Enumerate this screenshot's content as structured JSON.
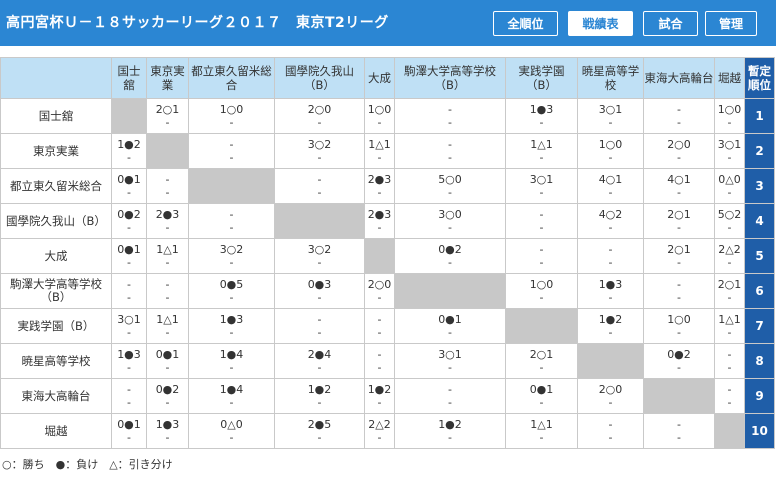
{
  "header": {
    "title": "高円宮杯Ｕ－１８サッカーリーグ２０１７　東京T2リーグ",
    "nav": [
      {
        "label": "全順位",
        "active": false
      },
      {
        "label": "戦績表",
        "active": true
      },
      {
        "label": "試合",
        "active": false
      },
      {
        "label": "管理",
        "active": false
      }
    ]
  },
  "table": {
    "rank_header": "暫定順位",
    "columns": [
      "国士舘",
      "東京実業",
      "都立東久留米総合",
      "國學院久我山（B）",
      "大成",
      "駒澤大学高等学校（B）",
      "実践学園（B）",
      "暁星高等学校",
      "東海大高輪台",
      "堀越"
    ],
    "rows": [
      {
        "team": "国士舘",
        "rank": "1",
        "cells": [
          null,
          [
            "2○1",
            "-"
          ],
          [
            "1○0",
            "-"
          ],
          [
            "2○0",
            "-"
          ],
          [
            "1○0",
            "-"
          ],
          [
            "-",
            "-"
          ],
          [
            "1●3",
            "-"
          ],
          [
            "3○1",
            "-"
          ],
          [
            "-",
            "-"
          ],
          [
            "1○0",
            "-"
          ]
        ]
      },
      {
        "team": "東京実業",
        "rank": "2",
        "cells": [
          [
            "1●2",
            "-"
          ],
          null,
          [
            "-",
            "-"
          ],
          [
            "3○2",
            "-"
          ],
          [
            "1△1",
            "-"
          ],
          [
            "-",
            "-"
          ],
          [
            "1△1",
            "-"
          ],
          [
            "1○0",
            "-"
          ],
          [
            "2○0",
            "-"
          ],
          [
            "3○1",
            "-"
          ]
        ]
      },
      {
        "team": "都立東久留米総合",
        "rank": "3",
        "cells": [
          [
            "0●1",
            "-"
          ],
          [
            "-",
            "-"
          ],
          null,
          [
            "-",
            "-"
          ],
          [
            "2●3",
            "-"
          ],
          [
            "5○0",
            "-"
          ],
          [
            "3○1",
            "-"
          ],
          [
            "4○1",
            "-"
          ],
          [
            "4○1",
            "-"
          ],
          [
            "0△0",
            "-"
          ]
        ]
      },
      {
        "team": "國學院久我山（B）",
        "rank": "4",
        "cells": [
          [
            "0●2",
            "-"
          ],
          [
            "2●3",
            "-"
          ],
          [
            "-",
            "-"
          ],
          null,
          [
            "2●3",
            "-"
          ],
          [
            "3○0",
            "-"
          ],
          [
            "-",
            "-"
          ],
          [
            "4○2",
            "-"
          ],
          [
            "2○1",
            "-"
          ],
          [
            "5○2",
            "-"
          ]
        ]
      },
      {
        "team": "大成",
        "rank": "5",
        "cells": [
          [
            "0●1",
            "-"
          ],
          [
            "1△1",
            "-"
          ],
          [
            "3○2",
            "-"
          ],
          [
            "3○2",
            "-"
          ],
          null,
          [
            "0●2",
            "-"
          ],
          [
            "-",
            "-"
          ],
          [
            "-",
            "-"
          ],
          [
            "2○1",
            "-"
          ],
          [
            "2△2",
            "-"
          ]
        ]
      },
      {
        "team": "駒澤大学高等学校（B）",
        "rank": "6",
        "cells": [
          [
            "-",
            "-"
          ],
          [
            "-",
            "-"
          ],
          [
            "0●5",
            "-"
          ],
          [
            "0●3",
            "-"
          ],
          [
            "2○0",
            "-"
          ],
          null,
          [
            "1○0",
            "-"
          ],
          [
            "1●3",
            "-"
          ],
          [
            "-",
            "-"
          ],
          [
            "2○1",
            "-"
          ]
        ]
      },
      {
        "team": "実践学園（B）",
        "rank": "7",
        "cells": [
          [
            "3○1",
            "-"
          ],
          [
            "1△1",
            "-"
          ],
          [
            "1●3",
            "-"
          ],
          [
            "-",
            "-"
          ],
          [
            "-",
            "-"
          ],
          [
            "0●1",
            "-"
          ],
          null,
          [
            "1●2",
            "-"
          ],
          [
            "1○0",
            "-"
          ],
          [
            "1△1",
            "-"
          ]
        ]
      },
      {
        "team": "暁星高等学校",
        "rank": "8",
        "cells": [
          [
            "1●3",
            "-"
          ],
          [
            "0●1",
            "-"
          ],
          [
            "1●4",
            "-"
          ],
          [
            "2●4",
            "-"
          ],
          [
            "-",
            "-"
          ],
          [
            "3○1",
            "-"
          ],
          [
            "2○1",
            "-"
          ],
          null,
          [
            "0●2",
            "-"
          ],
          [
            "-",
            "-"
          ]
        ]
      },
      {
        "team": "東海大高輪台",
        "rank": "9",
        "cells": [
          [
            "-",
            "-"
          ],
          [
            "0●2",
            "-"
          ],
          [
            "1●4",
            "-"
          ],
          [
            "1●2",
            "-"
          ],
          [
            "1●2",
            "-"
          ],
          [
            "-",
            "-"
          ],
          [
            "0●1",
            "-"
          ],
          [
            "2○0",
            "-"
          ],
          null,
          [
            "-",
            "-"
          ]
        ]
      },
      {
        "team": "堀越",
        "rank": "10",
        "cells": [
          [
            "0●1",
            "-"
          ],
          [
            "1●3",
            "-"
          ],
          [
            "0△0",
            "-"
          ],
          [
            "2●5",
            "-"
          ],
          [
            "2△2",
            "-"
          ],
          [
            "1●2",
            "-"
          ],
          [
            "1△1",
            "-"
          ],
          [
            "-",
            "-"
          ],
          [
            "-",
            "-"
          ],
          null
        ]
      }
    ]
  },
  "legend": "○：勝ち　●：負け　△：引き分け",
  "colors": {
    "header_bg": "#2b86d3",
    "col_header_bg": "#bfe0f5",
    "rank_bg": "#1f5ea8",
    "self_cell": "#c8c8c8"
  }
}
